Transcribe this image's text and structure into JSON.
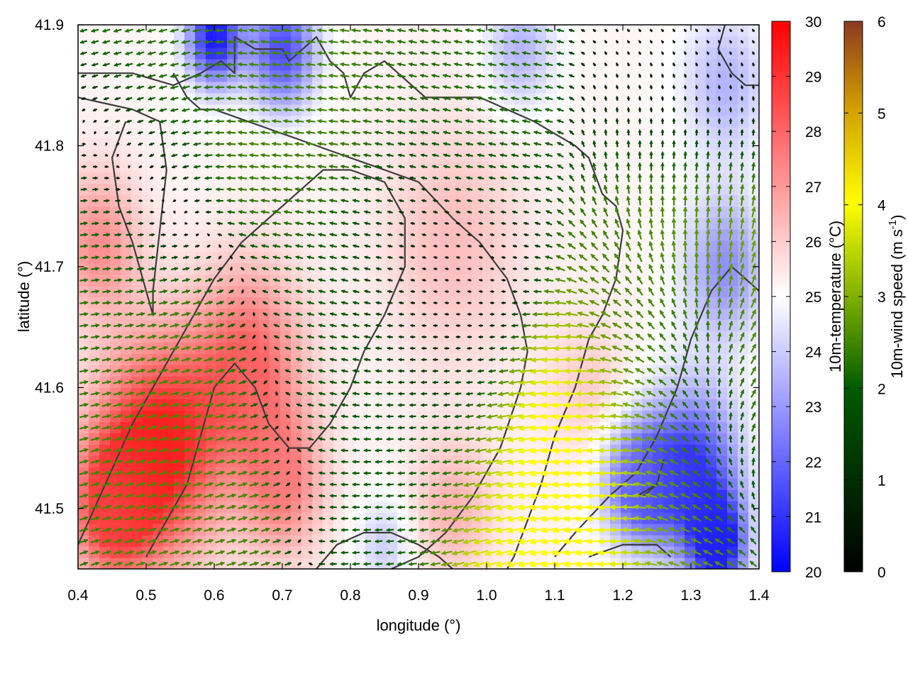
{
  "chart_data": {
    "type": "heatmap",
    "subtype": "temperature field with wind vectors and terrain contours",
    "title": "",
    "xlabel": "longitude (°)",
    "ylabel": "latitude (°)",
    "xlim": [
      0.4,
      1.4
    ],
    "ylim": [
      41.45,
      41.9
    ],
    "xticks": [
      "0.4",
      "0.5",
      "0.6",
      "0.7",
      "0.8",
      "0.9",
      "1.0",
      "1.1",
      "1.2",
      "1.3",
      "1.4"
    ],
    "yticks": [
      "41.5",
      "41.6",
      "41.7",
      "41.8",
      "41.9"
    ],
    "grid": "faint dotted",
    "temperature": {
      "label": "10m-temperature (°C)",
      "range": [
        20,
        30
      ],
      "ticks": [
        "20",
        "21",
        "22",
        "23",
        "24",
        "25",
        "26",
        "27",
        "28",
        "29",
        "30"
      ],
      "colormap": [
        "#0000ff",
        "#ffffff",
        "#ff0000"
      ],
      "centers": [
        {
          "lon": 0.52,
          "lat": 41.55,
          "value": 29.5,
          "spread": 0.09
        },
        {
          "lon": 0.45,
          "lat": 41.5,
          "value": 28.5,
          "spread": 0.06
        },
        {
          "lon": 0.65,
          "lat": 41.62,
          "value": 28.0,
          "spread": 0.08
        },
        {
          "lon": 0.7,
          "lat": 41.52,
          "value": 27.5,
          "spread": 0.06
        },
        {
          "lon": 0.43,
          "lat": 41.72,
          "value": 27.2,
          "spread": 0.06
        },
        {
          "lon": 0.95,
          "lat": 41.72,
          "value": 26.3,
          "spread": 0.1
        },
        {
          "lon": 0.95,
          "lat": 41.5,
          "value": 26.5,
          "spread": 0.06
        },
        {
          "lon": 1.15,
          "lat": 41.6,
          "value": 26.0,
          "spread": 0.06
        },
        {
          "lon": 1.3,
          "lat": 41.53,
          "value": 21.0,
          "spread": 0.07
        },
        {
          "lon": 1.34,
          "lat": 41.47,
          "value": 20.5,
          "spread": 0.04
        },
        {
          "lon": 1.35,
          "lat": 41.7,
          "value": 22.8,
          "spread": 0.06
        },
        {
          "lon": 1.22,
          "lat": 41.52,
          "value": 22.0,
          "spread": 0.05
        },
        {
          "lon": 0.6,
          "lat": 41.89,
          "value": 20.5,
          "spread": 0.04
        },
        {
          "lon": 0.7,
          "lat": 41.88,
          "value": 21.5,
          "spread": 0.05
        },
        {
          "lon": 1.05,
          "lat": 41.88,
          "value": 23.5,
          "spread": 0.05
        },
        {
          "lon": 1.35,
          "lat": 41.85,
          "value": 23.5,
          "spread": 0.06
        },
        {
          "lon": 0.85,
          "lat": 41.47,
          "value": 24.0,
          "spread": 0.04
        }
      ]
    },
    "wind": {
      "label": "10m-wind speed (m s-1)",
      "range": [
        0,
        6
      ],
      "ticks": [
        "0",
        "1",
        "2",
        "3",
        "4",
        "5",
        "6"
      ],
      "colormap": [
        "#000000",
        "#005a00",
        "#7fb000",
        "#ffff00",
        "#d2a000",
        "#8b3a22"
      ],
      "sources": [
        {
          "lon": 0.57,
          "lat": 41.56,
          "vx": 1.8,
          "vy": 0.5
        },
        {
          "lon": 0.42,
          "lat": 41.74,
          "vx": 1.6,
          "vy": 0.2
        },
        {
          "lon": 0.72,
          "lat": 41.84,
          "vx": -1.8,
          "vy": 0.2
        },
        {
          "lon": 0.78,
          "lat": 41.66,
          "vx": -1.2,
          "vy": 0.3
        },
        {
          "lon": 0.48,
          "lat": 41.85,
          "vx": -1.6,
          "vy": -0.4
        },
        {
          "lon": 0.95,
          "lat": 41.85,
          "vx": -1.5,
          "vy": 0.3
        },
        {
          "lon": 0.93,
          "lat": 41.68,
          "vx": -0.15,
          "vy": 0.05
        },
        {
          "lon": 0.9,
          "lat": 41.56,
          "vx": -1.3,
          "vy": -0.1
        },
        {
          "lon": 1.13,
          "lat": 41.52,
          "vx": -3.8,
          "vy": -0.3
        },
        {
          "lon": 1.06,
          "lat": 41.48,
          "vx": -3.4,
          "vy": -1.0
        },
        {
          "lon": 1.3,
          "lat": 41.72,
          "vx": 0.5,
          "vy": 2.8
        },
        {
          "lon": 1.3,
          "lat": 41.52,
          "vx": -2.2,
          "vy": 0.8
        },
        {
          "lon": 1.3,
          "lat": 41.85,
          "vx": -0.15,
          "vy": 0.1
        },
        {
          "lon": 1.37,
          "lat": 41.6,
          "vx": 1.6,
          "vy": 1.6
        },
        {
          "lon": 1.25,
          "lat": 41.64,
          "vx": -2.0,
          "vy": 0.8
        }
      ]
    },
    "contours": [
      [
        [
          0.4,
          41.86
        ],
        [
          0.48,
          41.86
        ],
        [
          0.54,
          41.85
        ],
        [
          0.58,
          41.86
        ],
        [
          0.61,
          41.87
        ],
        [
          0.63,
          41.86
        ],
        [
          0.63,
          41.89
        ],
        [
          0.66,
          41.88
        ],
        [
          0.7,
          41.88
        ],
        [
          0.71,
          41.87
        ],
        [
          0.73,
          41.88
        ],
        [
          0.75,
          41.89
        ],
        [
          0.77,
          41.87
        ],
        [
          0.79,
          41.86
        ],
        [
          0.8,
          41.84
        ],
        [
          0.82,
          41.86
        ],
        [
          0.85,
          41.87
        ],
        [
          0.87,
          41.86
        ],
        [
          0.89,
          41.85
        ],
        [
          0.91,
          41.84
        ],
        [
          0.94,
          41.84
        ],
        [
          0.99,
          41.84
        ],
        [
          1.03,
          41.83
        ],
        [
          1.07,
          41.82
        ],
        [
          1.1,
          41.81
        ],
        [
          1.13,
          41.8
        ],
        [
          1.15,
          41.79
        ],
        [
          1.17,
          41.76
        ],
        [
          1.19,
          41.75
        ],
        [
          1.2,
          41.73
        ],
        [
          1.19,
          41.69
        ],
        [
          1.17,
          41.66
        ],
        [
          1.15,
          41.64
        ],
        [
          1.13,
          41.6
        ],
        [
          1.1,
          41.56
        ],
        [
          1.08,
          41.52
        ],
        [
          1.06,
          41.49
        ],
        [
          1.04,
          41.46
        ],
        [
          1.03,
          41.45
        ]
      ],
      [
        [
          0.54,
          41.86
        ],
        [
          0.56,
          41.84
        ],
        [
          0.58,
          41.83
        ],
        [
          0.6,
          41.83
        ],
        [
          0.65,
          41.82
        ],
        [
          0.7,
          41.81
        ],
        [
          0.75,
          41.8
        ],
        [
          0.8,
          41.79
        ],
        [
          0.85,
          41.78
        ],
        [
          0.9,
          41.77
        ],
        [
          0.95,
          41.74
        ],
        [
          0.99,
          41.72
        ],
        [
          1.03,
          41.69
        ],
        [
          1.05,
          41.66
        ],
        [
          1.06,
          41.63
        ],
        [
          1.05,
          41.6
        ],
        [
          1.02,
          41.55
        ],
        [
          0.98,
          41.51
        ],
        [
          0.94,
          41.48
        ],
        [
          0.9,
          41.46
        ],
        [
          0.86,
          41.45
        ]
      ],
      [
        [
          0.4,
          41.84
        ],
        [
          0.48,
          41.83
        ],
        [
          0.52,
          41.82
        ],
        [
          0.53,
          41.78
        ],
        [
          0.52,
          41.73
        ],
        [
          0.51,
          41.68
        ],
        [
          0.51,
          41.66
        ],
        [
          0.5,
          41.68
        ],
        [
          0.48,
          41.72
        ],
        [
          0.46,
          41.75
        ],
        [
          0.45,
          41.79
        ],
        [
          0.47,
          41.82
        ]
      ],
      [
        [
          0.4,
          41.47
        ],
        [
          0.44,
          41.52
        ],
        [
          0.48,
          41.57
        ],
        [
          0.52,
          41.61
        ],
        [
          0.56,
          41.65
        ],
        [
          0.6,
          41.69
        ],
        [
          0.64,
          41.72
        ],
        [
          0.68,
          41.74
        ],
        [
          0.72,
          41.76
        ],
        [
          0.76,
          41.78
        ],
        [
          0.8,
          41.78
        ],
        [
          0.85,
          41.77
        ],
        [
          0.88,
          41.74
        ],
        [
          0.88,
          41.7
        ],
        [
          0.85,
          41.66
        ],
        [
          0.82,
          41.63
        ],
        [
          0.8,
          41.6
        ],
        [
          0.77,
          41.57
        ],
        [
          0.74,
          41.55
        ],
        [
          0.71,
          41.55
        ],
        [
          0.68,
          41.57
        ],
        [
          0.66,
          41.6
        ],
        [
          0.63,
          41.62
        ],
        [
          0.6,
          41.6
        ],
        [
          0.58,
          41.56
        ],
        [
          0.56,
          41.52
        ],
        [
          0.53,
          41.49
        ],
        [
          0.5,
          41.46
        ]
      ],
      [
        [
          0.75,
          41.45
        ],
        [
          0.78,
          41.47
        ],
        [
          0.82,
          41.48
        ],
        [
          0.86,
          41.48
        ],
        [
          0.9,
          41.47
        ],
        [
          0.93,
          41.46
        ],
        [
          0.95,
          41.45
        ]
      ],
      [
        [
          1.22,
          41.51
        ],
        [
          1.25,
          41.52
        ],
        [
          1.26,
          41.54
        ],
        [
          1.25,
          41.52
        ],
        [
          1.23,
          41.51
        ]
      ],
      [
        [
          1.4,
          41.68
        ],
        [
          1.36,
          41.7
        ],
        [
          1.33,
          41.68
        ],
        [
          1.3,
          41.64
        ],
        [
          1.28,
          41.6
        ],
        [
          1.25,
          41.56
        ],
        [
          1.22,
          41.53
        ],
        [
          1.18,
          41.51
        ],
        [
          1.13,
          41.48
        ],
        [
          1.1,
          41.46
        ]
      ],
      [
        [
          1.35,
          41.9
        ],
        [
          1.34,
          41.88
        ],
        [
          1.36,
          41.86
        ],
        [
          1.38,
          41.85
        ],
        [
          1.4,
          41.85
        ]
      ],
      [
        [
          1.15,
          41.46
        ],
        [
          1.2,
          41.47
        ],
        [
          1.25,
          41.47
        ],
        [
          1.27,
          41.46
        ]
      ]
    ]
  }
}
